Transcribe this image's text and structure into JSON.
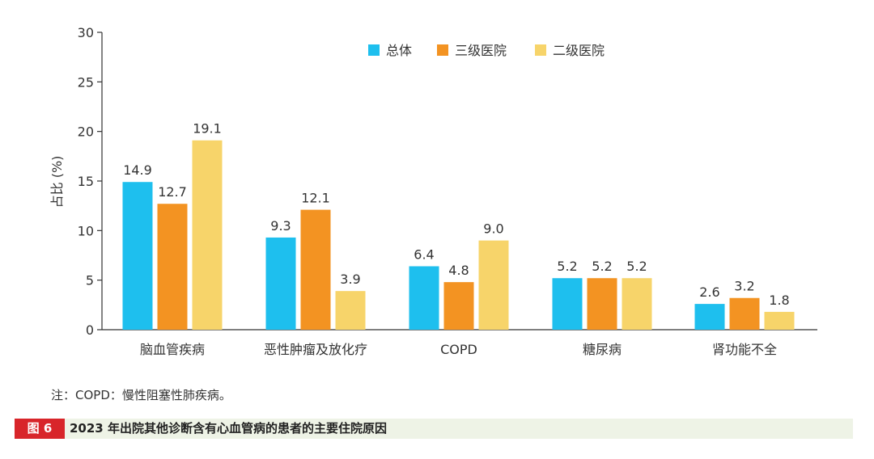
{
  "chart_data": {
    "type": "bar",
    "categories": [
      "脑血管疾病",
      "恶性肿瘤及放化疗",
      "COPD",
      "糖尿病",
      "肾功能不全"
    ],
    "series": [
      {
        "name": "总体",
        "color": "#1ebfee",
        "values": [
          14.9,
          9.3,
          6.4,
          5.2,
          2.6
        ]
      },
      {
        "name": "三级医院",
        "color": "#f39322",
        "values": [
          12.7,
          12.1,
          4.8,
          5.2,
          3.2
        ]
      },
      {
        "name": "二级医院",
        "color": "#f7d46a",
        "values": [
          19.1,
          3.9,
          9.0,
          5.2,
          1.8
        ]
      }
    ],
    "ylabel": "占比 (%)",
    "xlabel": "",
    "ylim": [
      0,
      30
    ],
    "yticks": [
      "0",
      "5",
      "10",
      "15",
      "20",
      "25",
      "30"
    ],
    "legend_position": "top",
    "grid": false,
    "show_values": true
  },
  "note": "注：COPD：慢性阻塞性肺疾病。",
  "caption": {
    "tag": "图 6",
    "text": "2023 年出院其他诊断含有心血管病的患者的主要住院原因"
  }
}
